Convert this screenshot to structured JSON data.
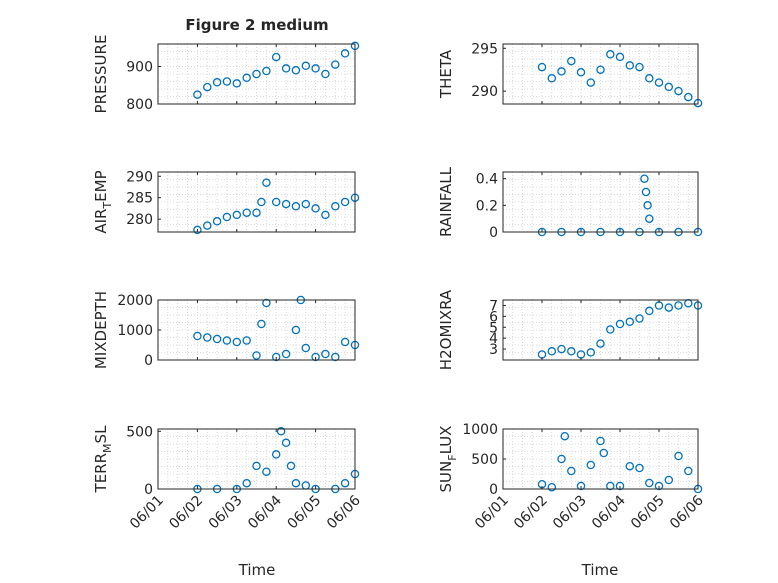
{
  "title": "Figure 2 medium",
  "xlabel_time": "Time",
  "colors": {
    "marker": "#0072BD",
    "axis": "#262626",
    "grid": "#d0d0d0"
  },
  "x_ticks": [
    "06/01",
    "06/02",
    "06/03",
    "06/04",
    "06/05",
    "06/06"
  ],
  "chart_data": [
    {
      "type": "scatter",
      "ylabel": "PRESSURE",
      "xlim": [
        "06/01",
        "06/06"
      ],
      "ylim": [
        800,
        960
      ],
      "yticks": [
        800,
        900
      ],
      "grid": true,
      "marker": "circle",
      "x": [
        "2023-06-02T00:00",
        "2023-06-02T06:00",
        "2023-06-02T12:00",
        "2023-06-02T18:00",
        "2023-06-03T00:00",
        "2023-06-03T06:00",
        "2023-06-03T12:00",
        "2023-06-03T18:00",
        "2023-06-04T00:00",
        "2023-06-04T06:00",
        "2023-06-04T12:00",
        "2023-06-04T18:00",
        "2023-06-05T00:00",
        "2023-06-05T06:00",
        "2023-06-05T12:00",
        "2023-06-05T18:00",
        "2023-06-06T00:00"
      ],
      "y": [
        825,
        845,
        858,
        860,
        855,
        870,
        880,
        888,
        925,
        895,
        890,
        902,
        895,
        880,
        905,
        935,
        955
      ]
    },
    {
      "type": "scatter",
      "ylabel": "THETA",
      "xlim": [
        "06/01",
        "06/06"
      ],
      "ylim": [
        288.5,
        295.5
      ],
      "yticks": [
        290,
        295
      ],
      "grid": true,
      "marker": "circle",
      "x": [
        "2023-06-02T00:00",
        "2023-06-02T06:00",
        "2023-06-02T12:00",
        "2023-06-02T18:00",
        "2023-06-03T00:00",
        "2023-06-03T06:00",
        "2023-06-03T12:00",
        "2023-06-03T18:00",
        "2023-06-04T00:00",
        "2023-06-04T06:00",
        "2023-06-04T12:00",
        "2023-06-04T18:00",
        "2023-06-05T00:00",
        "2023-06-05T06:00",
        "2023-06-05T12:00",
        "2023-06-05T18:00",
        "2023-06-06T00:00"
      ],
      "y": [
        292.8,
        291.5,
        292.3,
        293.5,
        292.2,
        291.0,
        292.5,
        294.3,
        294.0,
        293.0,
        292.8,
        291.5,
        291.0,
        290.5,
        290.0,
        289.3,
        288.6
      ]
    },
    {
      "type": "scatter",
      "ylabel": "AIR_TEMP",
      "xlim": [
        "06/01",
        "06/06"
      ],
      "ylim": [
        277,
        291
      ],
      "yticks": [
        280,
        285,
        290
      ],
      "grid": true,
      "marker": "circle",
      "x": [
        "2023-06-02T00:00",
        "2023-06-02T06:00",
        "2023-06-02T12:00",
        "2023-06-02T18:00",
        "2023-06-03T00:00",
        "2023-06-03T06:00",
        "2023-06-03T12:00",
        "2023-06-03T15:00",
        "2023-06-03T18:00",
        "2023-06-04T00:00",
        "2023-06-04T06:00",
        "2023-06-04T12:00",
        "2023-06-04T18:00",
        "2023-06-05T00:00",
        "2023-06-05T06:00",
        "2023-06-05T12:00",
        "2023-06-05T18:00",
        "2023-06-06T00:00"
      ],
      "y": [
        277.5,
        278.5,
        279.5,
        280.5,
        281.0,
        281.5,
        281.5,
        284.0,
        288.5,
        284.0,
        283.5,
        283.0,
        283.5,
        282.5,
        281.0,
        283.0,
        284.0,
        285.0
      ]
    },
    {
      "type": "scatter",
      "ylabel": "RAINFALL",
      "xlim": [
        "06/01",
        "06/06"
      ],
      "ylim": [
        0,
        0.45
      ],
      "yticks": [
        0,
        0.2,
        0.4
      ],
      "grid": true,
      "marker": "circle",
      "x": [
        "2023-06-02T00:00",
        "2023-06-02T12:00",
        "2023-06-03T00:00",
        "2023-06-03T12:00",
        "2023-06-04T00:00",
        "2023-06-04T12:00",
        "2023-06-04T15:00",
        "2023-06-04T16:00",
        "2023-06-04T17:00",
        "2023-06-04T18:00",
        "2023-06-05T00:00",
        "2023-06-05T12:00",
        "2023-06-06T00:00"
      ],
      "y": [
        0,
        0,
        0,
        0,
        0,
        0,
        0.4,
        0.3,
        0.2,
        0.1,
        0,
        0,
        0
      ]
    },
    {
      "type": "scatter",
      "ylabel": "MIXDEPTH",
      "xlim": [
        "06/01",
        "06/06"
      ],
      "ylim": [
        0,
        2000
      ],
      "yticks": [
        0,
        1000,
        2000
      ],
      "grid": true,
      "marker": "circle",
      "x": [
        "2023-06-02T00:00",
        "2023-06-02T06:00",
        "2023-06-02T12:00",
        "2023-06-02T18:00",
        "2023-06-03T00:00",
        "2023-06-03T06:00",
        "2023-06-03T12:00",
        "2023-06-03T15:00",
        "2023-06-03T18:00",
        "2023-06-04T00:00",
        "2023-06-04T06:00",
        "2023-06-04T12:00",
        "2023-06-04T15:00",
        "2023-06-04T18:00",
        "2023-06-05T00:00",
        "2023-06-05T06:00",
        "2023-06-05T12:00",
        "2023-06-05T18:00",
        "2023-06-06T00:00"
      ],
      "y": [
        800,
        750,
        700,
        650,
        600,
        650,
        150,
        1200,
        1900,
        100,
        200,
        1000,
        2000,
        400,
        100,
        200,
        100,
        600,
        500
      ]
    },
    {
      "type": "scatter",
      "ylabel": "H2OMIXRA",
      "xlim": [
        "06/01",
        "06/06"
      ],
      "ylim": [
        2,
        7.5
      ],
      "yticks": [
        3,
        4,
        5,
        6,
        7
      ],
      "grid": true,
      "marker": "circle",
      "x": [
        "2023-06-02T00:00",
        "2023-06-02T06:00",
        "2023-06-02T12:00",
        "2023-06-02T18:00",
        "2023-06-03T00:00",
        "2023-06-03T06:00",
        "2023-06-03T12:00",
        "2023-06-03T18:00",
        "2023-06-04T00:00",
        "2023-06-04T06:00",
        "2023-06-04T12:00",
        "2023-06-04T18:00",
        "2023-06-05T00:00",
        "2023-06-05T06:00",
        "2023-06-05T12:00",
        "2023-06-05T18:00",
        "2023-06-06T00:00"
      ],
      "y": [
        2.5,
        2.8,
        3.0,
        2.8,
        2.5,
        2.7,
        3.5,
        4.8,
        5.3,
        5.5,
        5.8,
        6.5,
        7.0,
        6.8,
        7.0,
        7.2,
        7.0
      ]
    },
    {
      "type": "scatter",
      "ylabel": "TERR_MSL",
      "xlim": [
        "06/01",
        "06/06"
      ],
      "ylim": [
        0,
        520
      ],
      "yticks": [
        0,
        500
      ],
      "grid": true,
      "marker": "circle",
      "x": [
        "2023-06-02T00:00",
        "2023-06-02T12:00",
        "2023-06-03T00:00",
        "2023-06-03T06:00",
        "2023-06-03T12:00",
        "2023-06-03T18:00",
        "2023-06-04T00:00",
        "2023-06-04T03:00",
        "2023-06-04T06:00",
        "2023-06-04T09:00",
        "2023-06-04T12:00",
        "2023-06-04T18:00",
        "2023-06-05T00:00",
        "2023-06-05T12:00",
        "2023-06-05T18:00",
        "2023-06-06T00:00"
      ],
      "y": [
        0,
        0,
        0,
        50,
        200,
        150,
        300,
        500,
        400,
        200,
        50,
        30,
        0,
        0,
        50,
        130
      ]
    },
    {
      "type": "scatter",
      "ylabel": "SUN_FLUX",
      "xlim": [
        "06/01",
        "06/06"
      ],
      "ylim": [
        0,
        1000
      ],
      "yticks": [
        0,
        500,
        1000
      ],
      "grid": true,
      "marker": "circle",
      "x": [
        "2023-06-02T00:00",
        "2023-06-02T06:00",
        "2023-06-02T12:00",
        "2023-06-02T14:00",
        "2023-06-02T18:00",
        "2023-06-03T00:00",
        "2023-06-03T06:00",
        "2023-06-03T12:00",
        "2023-06-03T14:00",
        "2023-06-03T18:00",
        "2023-06-04T00:00",
        "2023-06-04T06:00",
        "2023-06-04T12:00",
        "2023-06-04T18:00",
        "2023-06-05T00:00",
        "2023-06-05T06:00",
        "2023-06-05T12:00",
        "2023-06-05T18:00",
        "2023-06-06T00:00"
      ],
      "y": [
        80,
        30,
        500,
        880,
        300,
        50,
        400,
        800,
        600,
        50,
        50,
        380,
        350,
        100,
        50,
        150,
        550,
        300,
        0
      ]
    }
  ]
}
